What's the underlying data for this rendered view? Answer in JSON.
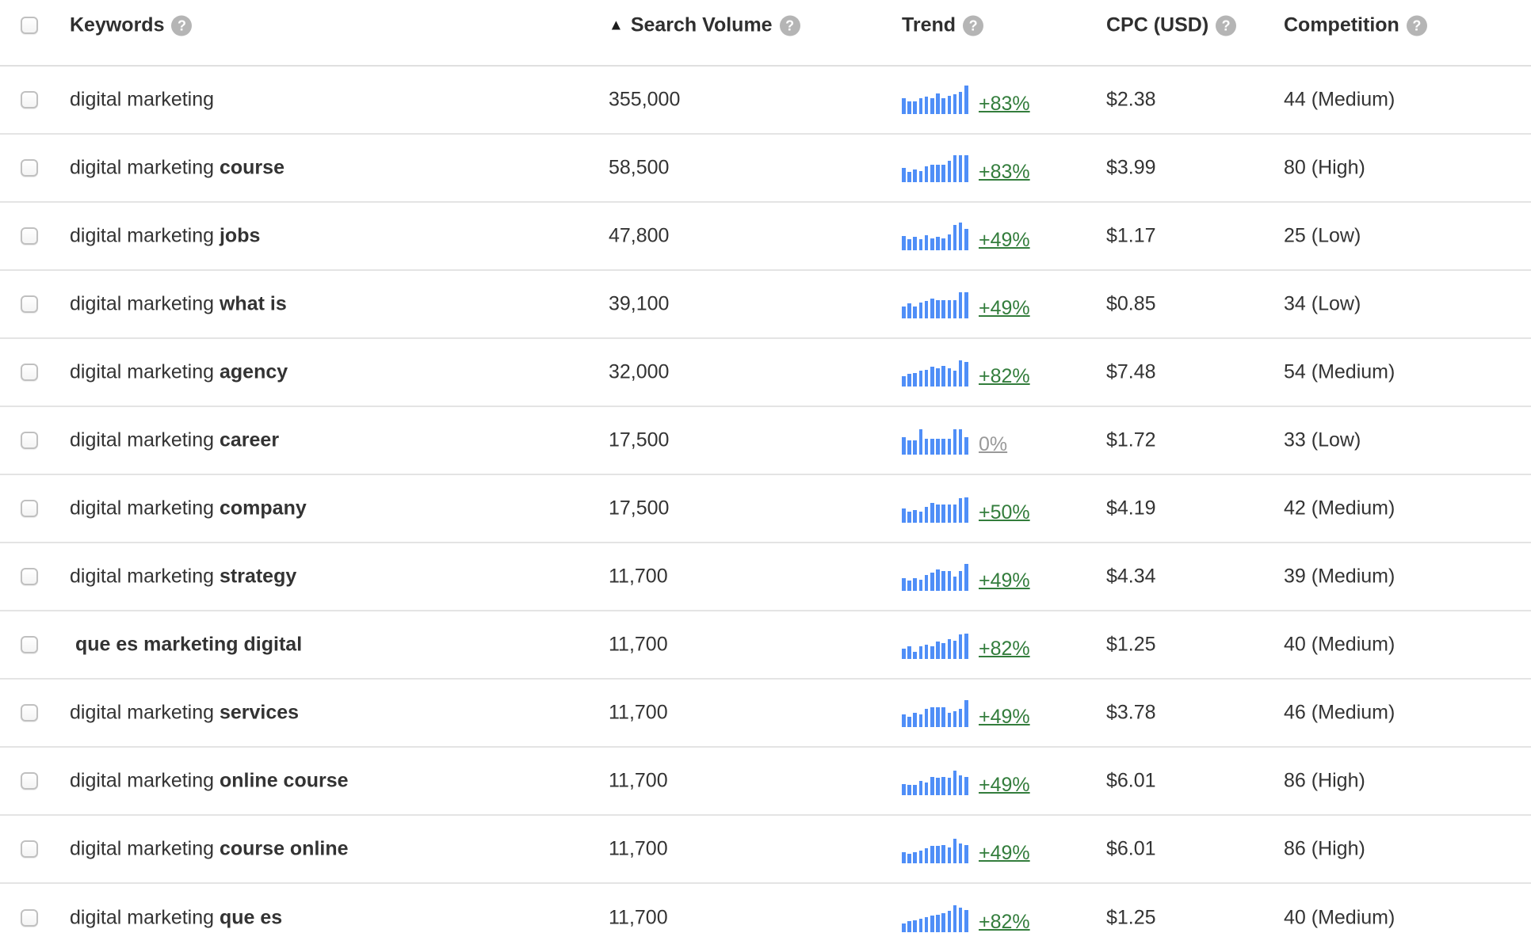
{
  "colors": {
    "bar_blue": "#4f8ef7",
    "positive_green": "#337d3c",
    "neutral_gray": "#999999",
    "text": "#333333",
    "divider": "#e4e4e4"
  },
  "header": {
    "sort_arrow": "▲",
    "help_glyph": "?",
    "columns": [
      {
        "label": "Keywords"
      },
      {
        "label": "Search Volume"
      },
      {
        "label": "Trend"
      },
      {
        "label": "CPC (USD)"
      },
      {
        "label": "Competition"
      }
    ]
  },
  "table": {
    "rows": [
      {
        "keyword_regular": "digital marketing",
        "keyword_bold": "",
        "volume": "355,000",
        "trend_percent": "+83%",
        "trend_neutral": false,
        "trend_bars": [
          55,
          45,
          45,
          55,
          62,
          55,
          72,
          55,
          65,
          70,
          78,
          100
        ],
        "cpc": "$2.38",
        "competition": "44 (Medium)"
      },
      {
        "keyword_regular": "digital marketing",
        "keyword_bold": "course",
        "volume": "58,500",
        "trend_percent": "+83%",
        "trend_neutral": false,
        "trend_bars": [
          50,
          35,
          45,
          40,
          55,
          60,
          60,
          62,
          75,
          95,
          95,
          95
        ],
        "cpc": "$3.99",
        "competition": "80 (High)"
      },
      {
        "keyword_regular": "digital marketing",
        "keyword_bold": "jobs",
        "volume": "47,800",
        "trend_percent": "+49%",
        "trend_neutral": false,
        "trend_bars": [
          50,
          38,
          48,
          40,
          52,
          42,
          48,
          42,
          55,
          90,
          98,
          75
        ],
        "cpc": "$1.17",
        "competition": "25 (Low)"
      },
      {
        "keyword_regular": "digital marketing",
        "keyword_bold": "what is",
        "volume": "39,100",
        "trend_percent": "+49%",
        "trend_neutral": false,
        "trend_bars": [
          42,
          52,
          42,
          55,
          62,
          70,
          65,
          65,
          65,
          65,
          92,
          92
        ],
        "cpc": "$0.85",
        "competition": "34 (Low)"
      },
      {
        "keyword_regular": "digital marketing",
        "keyword_bold": "agency",
        "volume": "32,000",
        "trend_percent": "+82%",
        "trend_neutral": false,
        "trend_bars": [
          35,
          45,
          48,
          55,
          58,
          70,
          65,
          72,
          65,
          55,
          92,
          85
        ],
        "cpc": "$7.48",
        "competition": "54 (Medium)"
      },
      {
        "keyword_regular": "digital marketing",
        "keyword_bold": "career",
        "volume": "17,500",
        "trend_percent": "0%",
        "trend_neutral": true,
        "trend_bars": [
          62,
          50,
          50,
          88,
          55,
          55,
          55,
          55,
          55,
          88,
          88,
          60
        ],
        "cpc": "$1.72",
        "competition": "33 (Low)"
      },
      {
        "keyword_regular": "digital marketing",
        "keyword_bold": "company",
        "volume": "17,500",
        "trend_percent": "+50%",
        "trend_neutral": false,
        "trend_bars": [
          50,
          40,
          45,
          40,
          55,
          70,
          65,
          65,
          65,
          65,
          85,
          90
        ],
        "cpc": "$4.19",
        "competition": "42 (Medium)"
      },
      {
        "keyword_regular": "digital marketing",
        "keyword_bold": "strategy",
        "volume": "11,700",
        "trend_percent": "+49%",
        "trend_neutral": false,
        "trend_bars": [
          45,
          35,
          45,
          40,
          55,
          65,
          75,
          70,
          70,
          50,
          70,
          95
        ],
        "cpc": "$4.34",
        "competition": "39 (Medium)"
      },
      {
        "keyword_regular": "",
        "keyword_bold": "que es marketing digital",
        "volume": "11,700",
        "trend_percent": "+82%",
        "trend_neutral": false,
        "trend_bars": [
          35,
          45,
          25,
          45,
          50,
          45,
          60,
          55,
          70,
          65,
          85,
          90
        ],
        "cpc": "$1.25",
        "competition": "40 (Medium)"
      },
      {
        "keyword_regular": "digital marketing",
        "keyword_bold": "services",
        "volume": "11,700",
        "trend_percent": "+49%",
        "trend_neutral": false,
        "trend_bars": [
          45,
          35,
          50,
          45,
          65,
          70,
          70,
          70,
          50,
          55,
          65,
          95
        ],
        "cpc": "$3.78",
        "competition": "46 (Medium)"
      },
      {
        "keyword_regular": "digital marketing",
        "keyword_bold": "online course",
        "volume": "11,700",
        "trend_percent": "+49%",
        "trend_neutral": false,
        "trend_bars": [
          40,
          35,
          35,
          50,
          45,
          65,
          60,
          65,
          60,
          85,
          70,
          65
        ],
        "cpc": "$6.01",
        "competition": "86 (High)"
      },
      {
        "keyword_regular": "digital marketing",
        "keyword_bold": "course online",
        "volume": "11,700",
        "trend_percent": "+49%",
        "trend_neutral": false,
        "trend_bars": [
          38,
          32,
          38,
          45,
          52,
          60,
          60,
          65,
          55,
          85,
          70,
          65
        ],
        "cpc": "$6.01",
        "competition": "86 (High)"
      },
      {
        "keyword_regular": "digital marketing",
        "keyword_bold": "que es",
        "volume": "11,700",
        "trend_percent": "+82%",
        "trend_neutral": false,
        "trend_bars": [
          30,
          38,
          42,
          48,
          52,
          58,
          62,
          68,
          75,
          95,
          85,
          78
        ],
        "cpc": "$1.25",
        "competition": "40 (Medium)"
      }
    ]
  }
}
